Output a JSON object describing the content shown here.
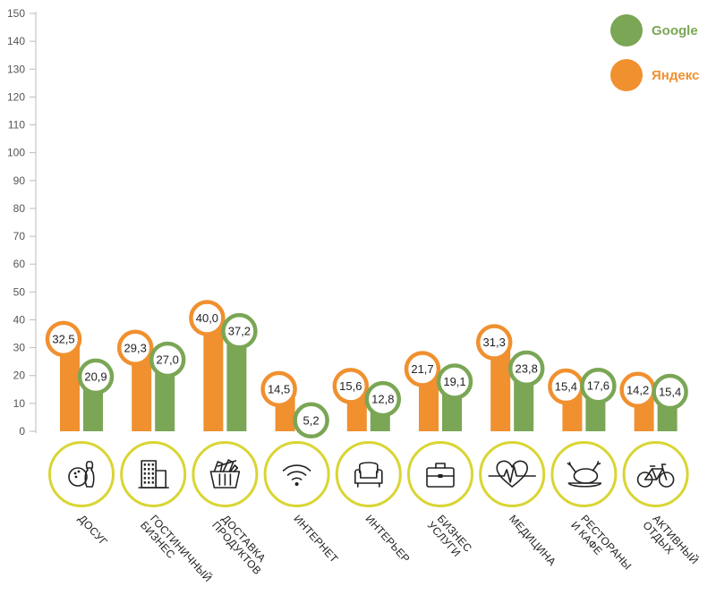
{
  "chart_data": {
    "type": "bar",
    "ylim": [
      0,
      150
    ],
    "yticks": [
      0,
      10,
      20,
      30,
      40,
      50,
      60,
      70,
      80,
      90,
      100,
      110,
      120,
      130,
      140,
      150
    ],
    "categories": [
      [
        "ДОСУГ"
      ],
      [
        "ГОСТИНИЧНЫЙ",
        "БИЗНЕС"
      ],
      [
        "ДОСТАВКА",
        "ПРОДУКТОВ"
      ],
      [
        "ИНТЕРНЕТ"
      ],
      [
        "ИНТЕРЬЕР"
      ],
      [
        "БИЗНЕС",
        "УСЛУГИ"
      ],
      [
        "МЕДИЦИНА"
      ],
      [
        "РЕСТОРАНЫ",
        "И КАФЕ"
      ],
      [
        "АКТИВНЫЙ",
        "ОТДЫХ"
      ]
    ],
    "category_icons": [
      "bowling-icon",
      "hotel-icon",
      "basket-icon",
      "wifi-icon",
      "armchair-icon",
      "briefcase-icon",
      "heartbeat-icon",
      "roast-chicken-icon",
      "bicycle-icon"
    ],
    "series": [
      {
        "name": "Яндекс",
        "color": "#f0902f",
        "values": [
          32.5,
          29.3,
          40.0,
          14.5,
          15.6,
          21.7,
          31.3,
          15.4,
          14.2
        ],
        "labels": [
          "32,5",
          "29,3",
          "40,0",
          "14,5",
          "15,6",
          "21,7",
          "31,3",
          "15,4",
          "14,2"
        ]
      },
      {
        "name": "Google",
        "color": "#7aa655",
        "values": [
          20.9,
          27.0,
          37.2,
          5.2,
          12.8,
          19.1,
          23.8,
          17.6,
          15.4
        ],
        "labels": [
          "20,9",
          "27,0",
          "37,2",
          "5,2",
          "12,8",
          "19,1",
          "23,8",
          "17,6",
          "15,4"
        ]
      }
    ],
    "legend": {
      "position": "top-right",
      "order": [
        "Google",
        "Яндекс"
      ]
    },
    "grid": false,
    "icon_ring_color": "#d9d533"
  }
}
